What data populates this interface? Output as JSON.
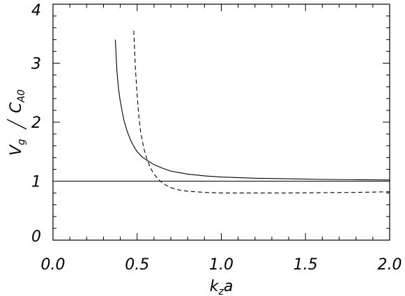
{
  "chart_data": {
    "type": "line",
    "xlabel_parts": {
      "main": "k",
      "sub": "z",
      "tail": "a"
    },
    "ylabel_parts": {
      "num_main": "V",
      "num_sub": "g",
      "den_main": "C",
      "den_sub": "A0"
    },
    "xlim": [
      0.0,
      2.0
    ],
    "ylim": [
      0,
      4
    ],
    "xticks": [
      0.0,
      0.5,
      1.0,
      1.5,
      2.0
    ],
    "xtick_labels": [
      "0.0",
      "0.5",
      "1.0",
      "1.5",
      "2.0"
    ],
    "yticks": [
      0,
      1,
      2,
      3,
      4
    ],
    "ytick_labels": [
      "0",
      "1",
      "2",
      "3",
      "4"
    ],
    "grid": false,
    "series": [
      {
        "style": "solid",
        "x": [
          0.37,
          0.38,
          0.39,
          0.4,
          0.42,
          0.44,
          0.46,
          0.48,
          0.5,
          0.53,
          0.56,
          0.6,
          0.65,
          0.7,
          0.8,
          0.9,
          1.0,
          1.2,
          1.4,
          1.6,
          1.8,
          2.0
        ],
        "y": [
          3.4,
          2.85,
          2.55,
          2.35,
          2.05,
          1.85,
          1.7,
          1.59,
          1.5,
          1.41,
          1.35,
          1.28,
          1.22,
          1.17,
          1.12,
          1.09,
          1.07,
          1.05,
          1.04,
          1.03,
          1.025,
          1.02
        ]
      },
      {
        "style": "dashed",
        "x": [
          0.48,
          0.49,
          0.5,
          0.51,
          0.52,
          0.54,
          0.56,
          0.58,
          0.6,
          0.63,
          0.66,
          0.7,
          0.75,
          0.8,
          0.9,
          1.0,
          1.2,
          1.4,
          1.6,
          1.8,
          2.0
        ],
        "y": [
          3.55,
          2.9,
          2.45,
          2.1,
          1.85,
          1.55,
          1.36,
          1.22,
          1.12,
          1.02,
          0.95,
          0.89,
          0.85,
          0.83,
          0.81,
          0.8,
          0.8,
          0.8,
          0.805,
          0.81,
          0.82
        ]
      },
      {
        "style": "solid-reference",
        "x": [
          0.0,
          2.0
        ],
        "y": [
          1.0,
          1.0
        ]
      }
    ]
  }
}
